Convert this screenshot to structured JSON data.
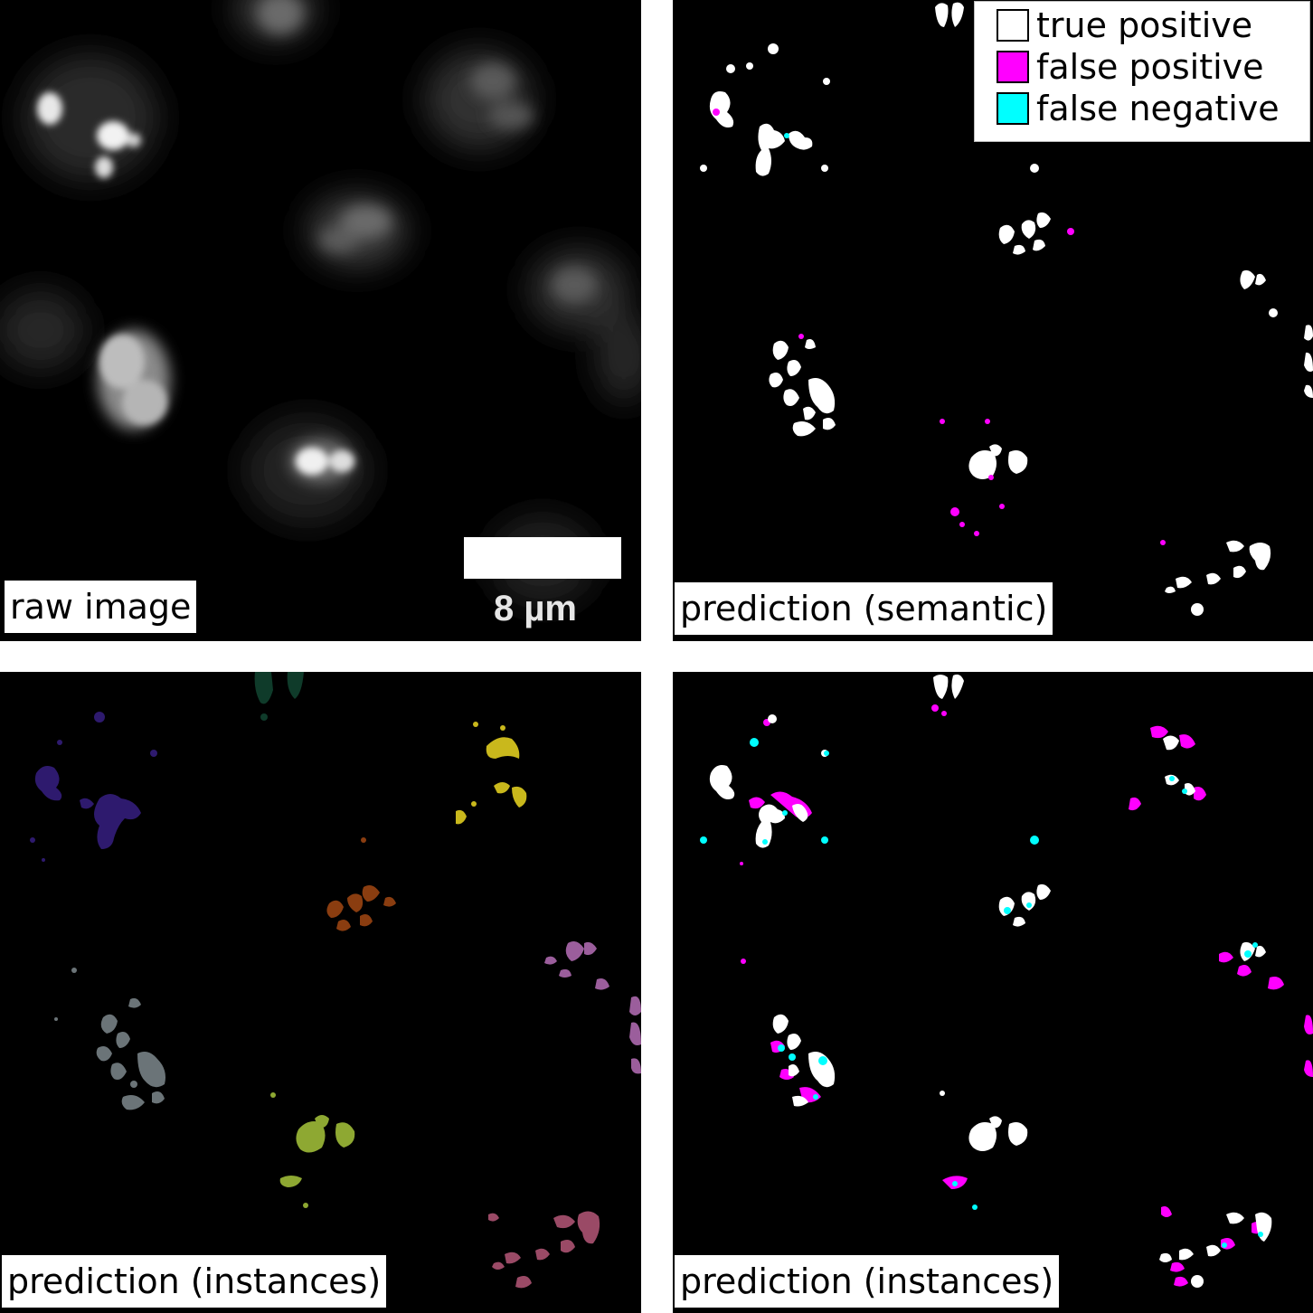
{
  "panels": {
    "raw": {
      "label": "raw image",
      "scale_label": "8 µm"
    },
    "semantic": {
      "label": "prediction (semantic)"
    },
    "instances": {
      "label": "prediction (instances)"
    },
    "instances_eval": {
      "label": "prediction (instances)"
    }
  },
  "legend": {
    "items": [
      {
        "label": "true positive",
        "color": "#ffffff"
      },
      {
        "label": "false positive",
        "color": "#ff00ff"
      },
      {
        "label": "false negative",
        "color": "#00ffff"
      }
    ]
  },
  "colors": {
    "background": "#000000",
    "true_positive": "#ffffff",
    "false_positive": "#ff00ff",
    "false_negative": "#00ffff",
    "instance_palette": [
      "#2e1a6e",
      "#0f3b2a",
      "#c9b81c",
      "#8a3d10",
      "#9b5e9c",
      "#6b7478",
      "#8ea832",
      "#9a4a66"
    ]
  }
}
